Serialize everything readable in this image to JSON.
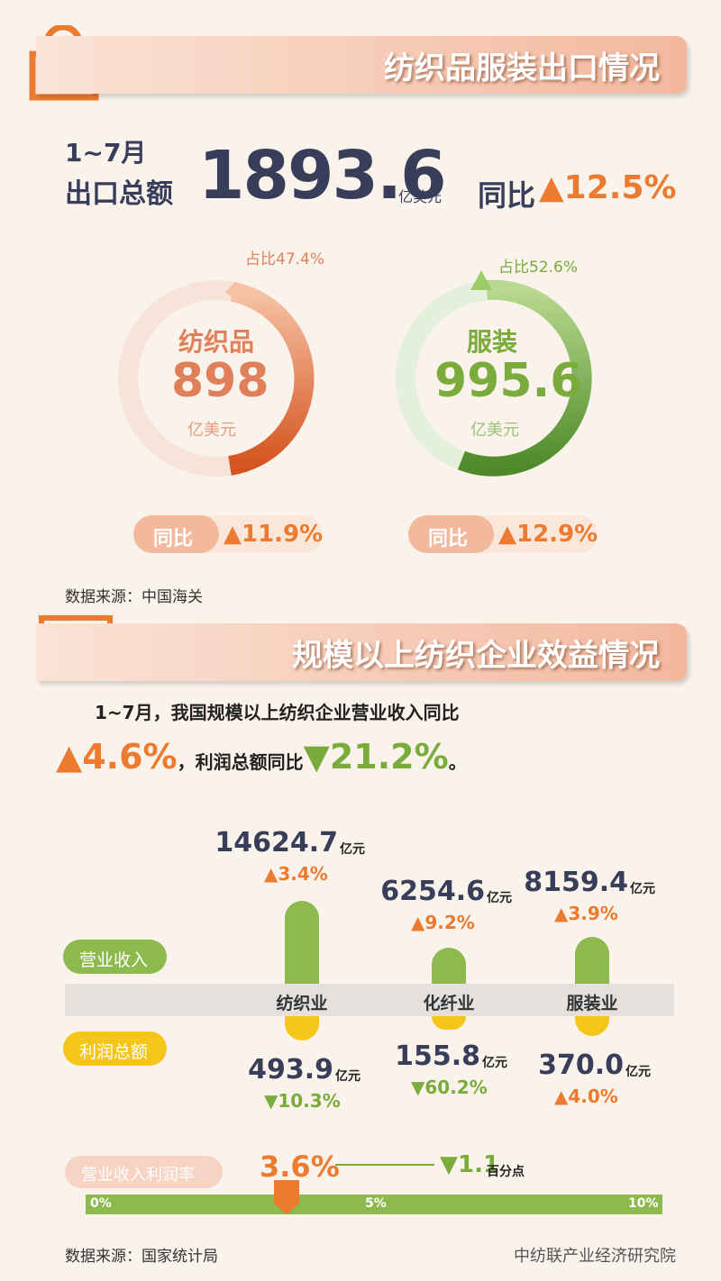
{
  "export": {
    "title": "纺织品服装出口情况",
    "period": "1~7月",
    "label": "出口总额",
    "value": "1893.6",
    "unit": "亿美元",
    "yoy_label": "同比",
    "yoy": "▲12.5%",
    "groups": [
      {
        "share": "占比47.4%",
        "name": "纺织品",
        "value": "898",
        "unit": "亿美元",
        "yoy_label": "同比",
        "yoy": "▲11.9%"
      },
      {
        "share": "占比52.6%",
        "name": "服装",
        "value": "995.6",
        "unit": "亿美元",
        "yoy_label": "同比",
        "yoy": "▲12.9%"
      }
    ],
    "source": "数据来源：中国海关"
  },
  "benefit": {
    "title": "规模以上纺织企业效益情况",
    "summary": {
      "line1": "1~7月，我国规模以上纺织企业营业收入同比",
      "revenue_yoy": "▲4.6%",
      "middle": "，利润总额同比",
      "profit_yoy": "▼21.2%",
      "end": "。"
    },
    "legend": {
      "revenue": "营业收入",
      "profit": "利润总额"
    },
    "industries": [
      {
        "name": "纺织业",
        "revenue": "14624.7",
        "revenue_unit": "亿元",
        "revenue_yoy": "▲3.4%",
        "profit": "493.9",
        "profit_unit": "亿元",
        "profit_yoy": "▼10.3%"
      },
      {
        "name": "化纤业",
        "revenue": "6254.6",
        "revenue_unit": "亿元",
        "revenue_yoy": "▲9.2%",
        "profit": "155.8",
        "profit_unit": "亿元",
        "profit_yoy": "▼60.2%"
      },
      {
        "name": "服装业",
        "revenue": "8159.4",
        "revenue_unit": "亿元",
        "revenue_yoy": "▲3.9%",
        "profit": "370.0",
        "profit_unit": "亿元",
        "profit_yoy": "▲4.0%"
      }
    ],
    "margin": {
      "label": "营业收入利润率",
      "value": "3.6%",
      "change": "▼1.1",
      "change_unit": "百分点",
      "scale": [
        "0%",
        "5%",
        "10%"
      ]
    },
    "source": "数据来源：国家统计局"
  },
  "watermark": "中纺联产业经济研究院"
}
